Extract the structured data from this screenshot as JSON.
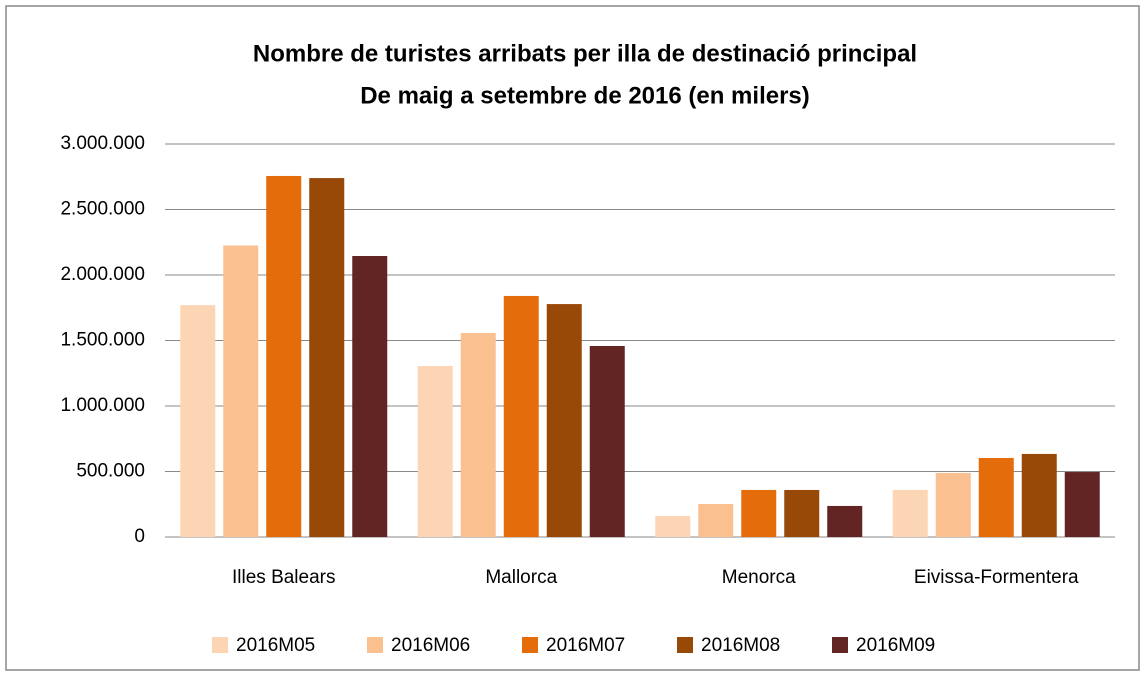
{
  "chart_data": {
    "type": "bar",
    "title": "Nombre de turistes arribats per illa de destinació principal",
    "subtitle": "De maig a  setembre de 2016  (en milers)",
    "categories": [
      "Illes Balears",
      "Mallorca",
      "Menorca",
      "Eivissa-Formentera"
    ],
    "series": [
      {
        "name": "2016M05",
        "color": "#fcd5b5",
        "values": [
          1770000,
          1305000,
          160000,
          359000
        ]
      },
      {
        "name": "2016M06",
        "color": "#fac090",
        "values": [
          2225000,
          1557000,
          252000,
          489000
        ]
      },
      {
        "name": "2016M07",
        "color": "#e46c0a",
        "values": [
          2756000,
          1840000,
          359000,
          603000
        ]
      },
      {
        "name": "2016M08",
        "color": "#984807",
        "values": [
          2740000,
          1778000,
          359000,
          634000
        ]
      },
      {
        "name": "2016M09",
        "color": "#632523",
        "values": [
          2145000,
          1458000,
          237000,
          496000
        ]
      }
    ],
    "ylim": [
      0,
      3000000
    ],
    "yticks": [
      0,
      {
        "value": 500000,
        "label": "500.000"
      },
      {
        "value": 1000000,
        "label": "1.000.000"
      },
      {
        "value": 1500000,
        "label": "1.500.000"
      },
      {
        "value": 2000000,
        "label": "2.000.000"
      },
      {
        "value": 2500000,
        "label": "2.500.000"
      },
      {
        "value": 3000000,
        "label": "3.000.000"
      }
    ],
    "grid": true,
    "legend": "bottom"
  }
}
